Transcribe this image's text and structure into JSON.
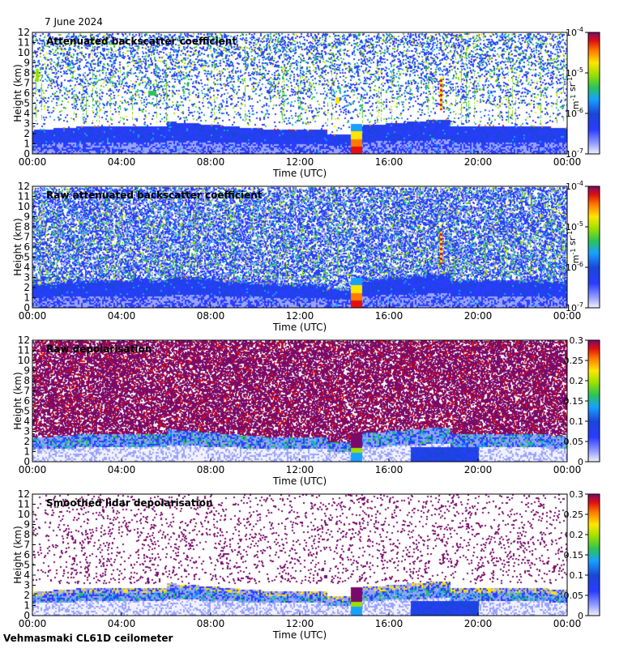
{
  "date_label": "7 June 2024",
  "footer_label": "Vehmasmaki CL61D ceilometer",
  "chart_data": [
    {
      "type": "heatmap",
      "title": "Attenuated backscatter coefficient",
      "xlabel": "Time (UTC)",
      "ylabel": "Height (km)",
      "x_ticks": [
        "00:00",
        "04:00",
        "08:00",
        "12:00",
        "16:00",
        "20:00",
        "00:00"
      ],
      "y_ticks": [
        "0",
        "1",
        "2",
        "3",
        "4",
        "5",
        "6",
        "7",
        "8",
        "9",
        "10",
        "11",
        "12"
      ],
      "ylim": [
        0,
        12
      ],
      "colorbar": {
        "scale": "log",
        "ticks": [
          "10-7",
          "10-6",
          "10-5",
          "10-4"
        ],
        "unit": "m-1 sr-1"
      },
      "noise_level": "low"
    },
    {
      "type": "heatmap",
      "title": "Raw attenuated backscatter coefficient",
      "xlabel": "Time (UTC)",
      "ylabel": "Height (km)",
      "x_ticks": [
        "00:00",
        "04:00",
        "08:00",
        "12:00",
        "16:00",
        "20:00",
        "00:00"
      ],
      "y_ticks": [
        "0",
        "1",
        "2",
        "3",
        "4",
        "5",
        "6",
        "7",
        "8",
        "9",
        "10",
        "11",
        "12"
      ],
      "ylim": [
        0,
        12
      ],
      "colorbar": {
        "scale": "log",
        "ticks": [
          "10-7",
          "10-6",
          "10-5",
          "10-4"
        ],
        "unit": "m-1 sr-1"
      },
      "noise_level": "high"
    },
    {
      "type": "heatmap",
      "title": "Raw depolarisation",
      "xlabel": "Time (UTC)",
      "ylabel": "Height (km)",
      "x_ticks": [
        "00:00",
        "04:00",
        "08:00",
        "12:00",
        "16:00",
        "20:00",
        "00:00"
      ],
      "y_ticks": [
        "0",
        "1",
        "2",
        "3",
        "4",
        "5",
        "6",
        "7",
        "8",
        "9",
        "10",
        "11",
        "12"
      ],
      "ylim": [
        0,
        12
      ],
      "colorbar": {
        "scale": "linear",
        "ticks": [
          "0",
          "0.05",
          "0.1",
          "0.15",
          "0.2",
          "0.25",
          "0.3"
        ],
        "range": [
          0,
          0.3
        ]
      },
      "noise_level": "depol-raw"
    },
    {
      "type": "heatmap",
      "title": "Smoothed lidar depolarisation",
      "xlabel": "Time (UTC)",
      "ylabel": "Height (km)",
      "x_ticks": [
        "00:00",
        "04:00",
        "08:00",
        "12:00",
        "16:00",
        "20:00",
        "00:00"
      ],
      "y_ticks": [
        "0",
        "1",
        "2",
        "3",
        "4",
        "5",
        "6",
        "7",
        "8",
        "9",
        "10",
        "11",
        "12"
      ],
      "ylim": [
        0,
        12
      ],
      "colorbar": {
        "scale": "linear",
        "ticks": [
          "0",
          "0.05",
          "0.1",
          "0.15",
          "0.2",
          "0.25",
          "0.3"
        ],
        "range": [
          0,
          0.3
        ]
      },
      "noise_level": "depol-smooth"
    }
  ]
}
